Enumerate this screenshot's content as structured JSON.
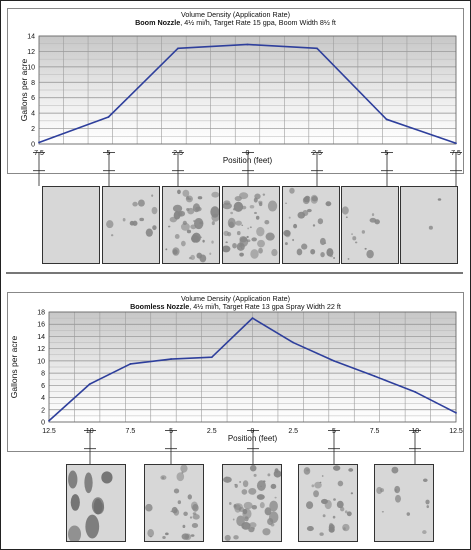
{
  "chart_data": [
    {
      "type": "line",
      "title": "Volume Density (Application Rate)",
      "subtitle_bold": "Boom Nozzle",
      "subtitle_rest": ", 4½ mi/h, Target Rate 15 gpa, Boom Width 8½ ft",
      "xlabel": "Position (feet)",
      "ylabel": "Gallons per acre",
      "ylim": [
        0,
        14
      ],
      "yticks": [
        "0",
        "2",
        "4",
        "6",
        "8",
        "10",
        "12",
        "14"
      ],
      "xticks": [
        "7.5",
        "5",
        "2.5",
        "0",
        "2.5",
        "5",
        "7.5"
      ],
      "grid": true,
      "x": [
        -7.5,
        -5,
        -2.5,
        0,
        2.5,
        5,
        7.5
      ],
      "values": [
        0.2,
        3.5,
        12.4,
        12.9,
        12.4,
        3.2,
        0.1
      ],
      "line_color": "#2e3f9c"
    },
    {
      "type": "line",
      "title": "Volume Density (Application Rate)",
      "subtitle_bold": "Boomless Nozzle",
      "subtitle_rest": ", 4½ mi/h, Target Rate 13 gpa Spray Width 22 ft",
      "xlabel": "Position (feet)",
      "ylabel": "Gallons per acre",
      "ylim": [
        0,
        18
      ],
      "yticks": [
        "0",
        "2",
        "4",
        "6",
        "8",
        "10",
        "12",
        "14",
        "16",
        "18"
      ],
      "xticks": [
        "12.5",
        "10",
        "7.5",
        "5",
        "2.5",
        "0",
        "2.5",
        "5",
        "7.5",
        "10",
        "12.5"
      ],
      "grid": true,
      "x": [
        -12.5,
        -10,
        -7.5,
        -5,
        -2.5,
        0,
        2.5,
        5,
        7.5,
        10,
        12.5
      ],
      "values": [
        0.2,
        6.2,
        9.5,
        10.3,
        10.6,
        17.0,
        13.0,
        10.0,
        7.5,
        4.9,
        1.5
      ],
      "line_color": "#2e3f9c"
    }
  ],
  "droplet_samples": {
    "boom": [
      {
        "position": "7.5",
        "density": "none"
      },
      {
        "position": "5",
        "density": "sparse"
      },
      {
        "position": "2.5",
        "density": "dense"
      },
      {
        "position": "0",
        "density": "dense"
      },
      {
        "position": "2.5",
        "density": "medium"
      },
      {
        "position": "5",
        "density": "sparse"
      },
      {
        "position": "7.5",
        "density": "trace"
      }
    ],
    "boomless": [
      {
        "position": "10",
        "density": "large-drops"
      },
      {
        "position": "5",
        "density": "medium"
      },
      {
        "position": "0",
        "density": "dense"
      },
      {
        "position": "5",
        "density": "medium"
      },
      {
        "position": "10",
        "density": "sparse"
      }
    ]
  },
  "colors": {
    "line": "#2e3f9c",
    "grid_dark": "#9a9a9a",
    "card_bg": "#d6d6d6",
    "drop": "#7d7d7d"
  }
}
